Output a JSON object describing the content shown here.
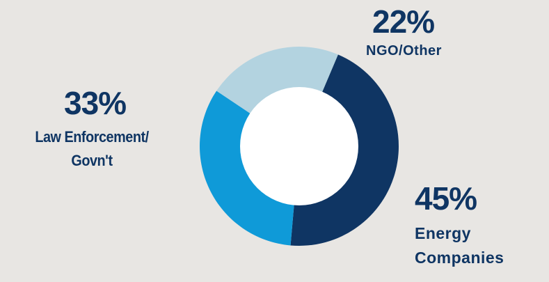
{
  "chart_data": {
    "type": "pie",
    "style": "donut",
    "title": "",
    "categories": [
      "Energy Companies",
      "Law Enforcement/ Govn't",
      "NGO/Other"
    ],
    "values": [
      45,
      33,
      22
    ],
    "value_labels": [
      "45%",
      "33%",
      "22%"
    ],
    "label_lines": [
      [
        "Energy",
        "Companies"
      ],
      [
        "Law Enforcement/",
        "Govn't"
      ],
      [
        "NGO/Other"
      ]
    ],
    "colors": [
      "#0f3563",
      "#0f9ad8",
      "#b3d3e0"
    ],
    "start_angle_deg": 23,
    "legend": "none",
    "grid": false
  }
}
